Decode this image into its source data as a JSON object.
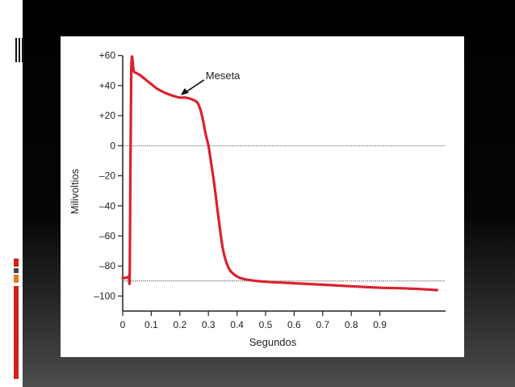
{
  "colors": {
    "curve": "#d9222e",
    "accent_orange": "#e07a27",
    "accent_red": "#d01f1f"
  },
  "chart_data": {
    "type": "line",
    "title": "",
    "xlabel": "Segundos",
    "ylabel": "Milivoltios",
    "xlim": [
      0,
      1.13
    ],
    "ylim": [
      -110,
      62
    ],
    "x_ticks": [
      0,
      0.1,
      0.2,
      0.3,
      0.4,
      0.5,
      0.6,
      0.7,
      0.8,
      0.9
    ],
    "x_tick_labels": [
      "0",
      "0.1",
      "0.2",
      "0.3",
      "0.4",
      "0.5",
      "0.6",
      "0.7",
      "0.8",
      "0.9"
    ],
    "y_ticks": [
      60,
      40,
      20,
      0,
      -20,
      -40,
      -60,
      -80,
      -100
    ],
    "y_tick_labels": [
      "+60",
      "+40",
      "+20",
      "0",
      "–20",
      "–40",
      "–60",
      "–80",
      "–100"
    ],
    "reference_lines": [
      0,
      -90
    ],
    "grid": false,
    "series": [
      {
        "x": [
          0.0,
          0.02,
          0.025,
          0.03,
          0.04,
          0.06,
          0.08,
          0.1,
          0.12,
          0.15,
          0.18,
          0.2,
          0.22,
          0.24,
          0.26,
          0.27,
          0.28,
          0.29,
          0.3,
          0.31,
          0.32,
          0.33,
          0.34,
          0.35,
          0.36,
          0.37,
          0.38,
          0.4,
          0.42,
          0.45,
          0.5,
          0.55,
          0.6,
          0.7,
          0.8,
          0.9,
          1.0,
          1.1
        ],
        "y": [
          -88,
          -87,
          -80,
          50,
          49,
          47,
          44,
          41,
          38,
          35,
          33,
          32,
          32,
          31,
          29,
          25,
          18,
          8,
          0,
          -12,
          -25,
          -40,
          -55,
          -68,
          -76,
          -81,
          -84,
          -87,
          -88.5,
          -89.5,
          -90.5,
          -91,
          -91.5,
          -92.5,
          -93.5,
          -94.5,
          -95,
          -96
        ]
      }
    ],
    "annotations": [
      {
        "text": "Meseta",
        "x": 0.2,
        "y": 33
      }
    ]
  }
}
